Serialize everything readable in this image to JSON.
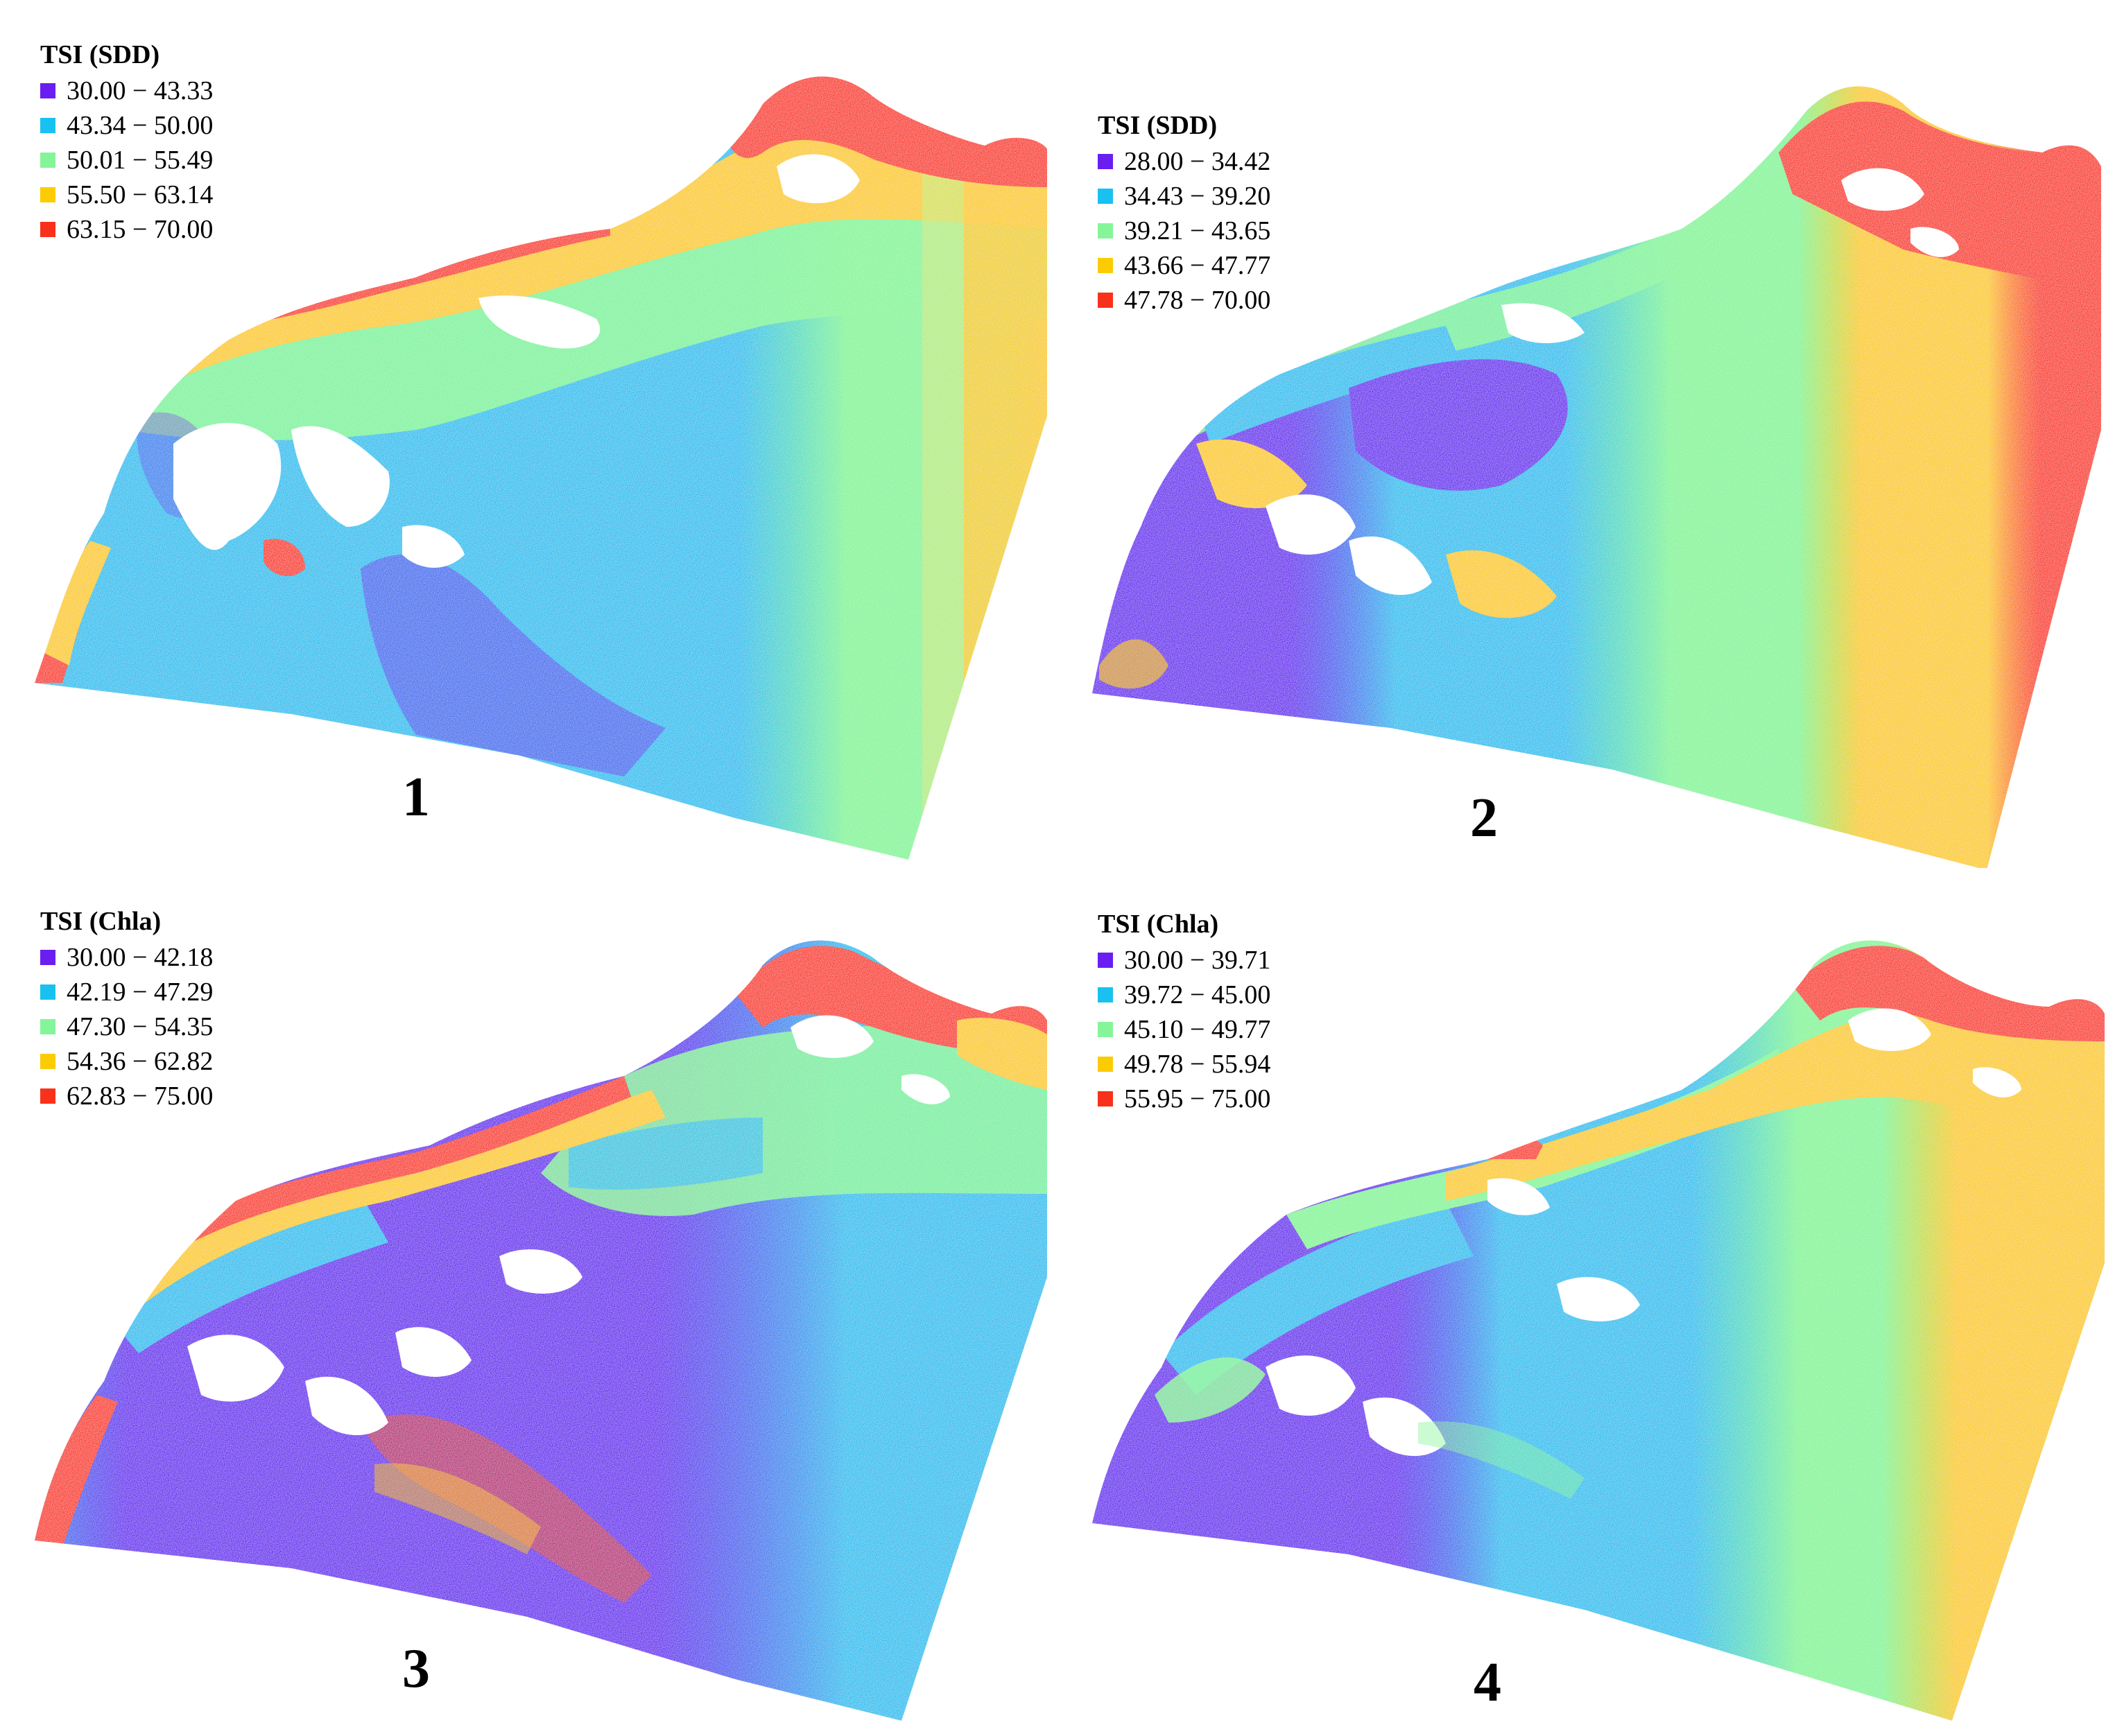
{
  "colors": {
    "class1": "#6a1ef0",
    "class2": "#19c1f0",
    "class3": "#85f59a",
    "class4": "#fccc03",
    "class5": "#f9311b"
  },
  "panels": [
    {
      "number": "1",
      "legend": {
        "title": "TSI (SDD)",
        "items": [
          {
            "label": "30.00 − 43.33",
            "color": "#6a1ef0"
          },
          {
            "label": "43.34 − 50.00",
            "color": "#19c1f0"
          },
          {
            "label": "50.01 − 55.49",
            "color": "#85f59a"
          },
          {
            "label": "55.50 − 63.14",
            "color": "#fccc03"
          },
          {
            "label": "63.15 − 70.00",
            "color": "#f9311b"
          }
        ]
      }
    },
    {
      "number": "2",
      "legend": {
        "title": "TSI (SDD)",
        "items": [
          {
            "label": "28.00 − 34.42",
            "color": "#6a1ef0"
          },
          {
            "label": "34.43 − 39.20",
            "color": "#19c1f0"
          },
          {
            "label": "39.21 − 43.65",
            "color": "#85f59a"
          },
          {
            "label": "43.66 − 47.77",
            "color": "#fccc03"
          },
          {
            "label": "47.78 − 70.00",
            "color": "#f9311b"
          }
        ]
      }
    },
    {
      "number": "3",
      "legend": {
        "title": "TSI (Chla)",
        "items": [
          {
            "label": "30.00 − 42.18",
            "color": "#6a1ef0"
          },
          {
            "label": "42.19 − 47.29",
            "color": "#19c1f0"
          },
          {
            "label": "47.30 − 54.35",
            "color": "#85f59a"
          },
          {
            "label": "54.36 − 62.82",
            "color": "#fccc03"
          },
          {
            "label": "62.83 − 75.00",
            "color": "#f9311b"
          }
        ]
      }
    },
    {
      "number": "4",
      "legend": {
        "title": "TSI (Chla)",
        "items": [
          {
            "label": "30.00 − 39.71",
            "color": "#6a1ef0"
          },
          {
            "label": "39.72 − 45.00",
            "color": "#19c1f0"
          },
          {
            "label": "45.10 − 49.77",
            "color": "#85f59a"
          },
          {
            "label": "49.78 − 55.94",
            "color": "#fccc03"
          },
          {
            "label": "55.95 − 75.00",
            "color": "#f9311b"
          }
        ]
      }
    }
  ]
}
